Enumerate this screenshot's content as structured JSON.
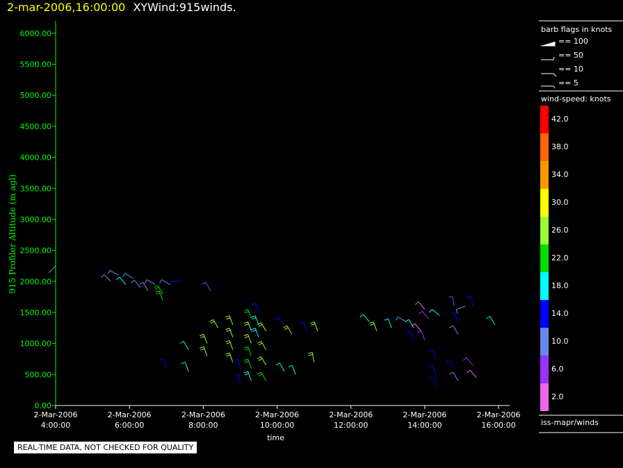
{
  "header": {
    "datetime": "2-mar-2006,16:00:00",
    "title": "XYWind:915winds."
  },
  "notice": "REAL-TIME DATA, NOT CHECKED FOR QUALITY",
  "legend": {
    "barb_title": "barb flags in knots",
    "barb_items": [
      "== 100",
      "== 50",
      "== 10",
      "== 5"
    ],
    "speed_title": "wind-speed: knots",
    "source": "iss-mapr/winds",
    "bins": [
      {
        "label": "42.0",
        "color": "#ff0000"
      },
      {
        "label": "38.0",
        "color": "#ff6600"
      },
      {
        "label": "34.0",
        "color": "#ff9900"
      },
      {
        "label": "30.0",
        "color": "#ffff00"
      },
      {
        "label": "26.0",
        "color": "#99ff33"
      },
      {
        "label": "22.0",
        "color": "#00dd00"
      },
      {
        "label": "18.0",
        "color": "#00ffff"
      },
      {
        "label": "14.0",
        "color": "#0000ff"
      },
      {
        "label": "10.0",
        "color": "#6688ee"
      },
      {
        "label": "6.0",
        "color": "#9933ff"
      },
      {
        "label": "2.0",
        "color": "#ee66ee"
      }
    ]
  },
  "colors": {
    "axis_x": "#ffffff",
    "axis_y": "#00ff00",
    "y_tick_text": "#00ff00"
  },
  "chart_data": {
    "type": "scatter",
    "xlabel": "time",
    "ylabel": "915 Profiler Altitude (m agl)",
    "xlim": [
      4,
      16.3
    ],
    "ylim": [
      0,
      6200
    ],
    "x_ticks": [
      {
        "value": 4,
        "label1": "2-Mar-2006",
        "label2": "4:00:00"
      },
      {
        "value": 6,
        "label1": "2-Mar-2006",
        "label2": "6:00:00"
      },
      {
        "value": 8,
        "label1": "2-Mar-2006",
        "label2": "8:00:00"
      },
      {
        "value": 10,
        "label1": "2-Mar-2006",
        "label2": "10:00:00"
      },
      {
        "value": 12,
        "label1": "2-Mar-2006",
        "label2": "12:00:00"
      },
      {
        "value": 14,
        "label1": "2-Mar-2006",
        "label2": "14:00:00"
      },
      {
        "value": 16,
        "label1": "2-Mar-2006",
        "label2": "16:00:00"
      }
    ],
    "y_ticks": [
      {
        "value": 0,
        "label": "0.00"
      },
      {
        "value": 500,
        "label": "500.00"
      },
      {
        "value": 1000,
        "label": "1000.00"
      },
      {
        "value": 1500,
        "label": "1500.00"
      },
      {
        "value": 2000,
        "label": "2000.00"
      },
      {
        "value": 2500,
        "label": "2500.00"
      },
      {
        "value": 3000,
        "label": "3000.00"
      },
      {
        "value": 3500,
        "label": "3500.00"
      },
      {
        "value": 4000,
        "label": "4000.00"
      },
      {
        "value": 4500,
        "label": "4500.00"
      },
      {
        "value": 5000,
        "label": "5000.00"
      },
      {
        "value": 5500,
        "label": "5500.00"
      },
      {
        "value": 6000,
        "label": "6000.00"
      }
    ],
    "barbs": [
      {
        "t": 4.0,
        "alt": 2250,
        "color": "#6688ee",
        "dir": 225,
        "n": 0
      },
      {
        "t": 5.5,
        "alt": 2000,
        "color": "#6688ee",
        "dir": 315,
        "n": 1
      },
      {
        "t": 5.7,
        "alt": 2100,
        "color": "#6688ee",
        "dir": 300,
        "n": 1
      },
      {
        "t": 5.9,
        "alt": 1950,
        "color": "#00ffff",
        "dir": 320,
        "n": 1
      },
      {
        "t": 6.1,
        "alt": 2050,
        "color": "#6688ee",
        "dir": 300,
        "n": 1
      },
      {
        "t": 6.3,
        "alt": 1900,
        "color": "#6688ee",
        "dir": 320,
        "n": 1
      },
      {
        "t": 6.5,
        "alt": 1850,
        "color": "#6688ee",
        "dir": 330,
        "n": 1
      },
      {
        "t": 6.7,
        "alt": 1950,
        "color": "#6688ee",
        "dir": 300,
        "n": 1
      },
      {
        "t": 6.9,
        "alt": 1800,
        "color": "#00dd00",
        "dir": 330,
        "n": 2
      },
      {
        "t": 7.1,
        "alt": 1950,
        "color": "#6688ee",
        "dir": 300,
        "n": 1
      },
      {
        "t": 7.4,
        "alt": 2000,
        "color": "#0000ff",
        "dir": 270,
        "n": 1
      },
      {
        "t": 8.2,
        "alt": 1850,
        "color": "#9933ff",
        "dir": 330,
        "n": 1
      },
      {
        "t": 6.9,
        "alt": 1700,
        "color": "#00dd00",
        "dir": 340,
        "n": 2
      },
      {
        "t": 8.4,
        "alt": 1250,
        "color": "#99ff33",
        "dir": 330,
        "n": 2
      },
      {
        "t": 8.8,
        "alt": 1300,
        "color": "#99ff33",
        "dir": 340,
        "n": 2
      },
      {
        "t": 8.8,
        "alt": 1100,
        "color": "#99ff33",
        "dir": 340,
        "n": 2
      },
      {
        "t": 8.8,
        "alt": 900,
        "color": "#99ff33",
        "dir": 340,
        "n": 2
      },
      {
        "t": 8.8,
        "alt": 700,
        "color": "#99ff33",
        "dir": 340,
        "n": 2
      },
      {
        "t": 9.3,
        "alt": 1400,
        "color": "#00dd00",
        "dir": 340,
        "n": 2
      },
      {
        "t": 9.3,
        "alt": 1200,
        "color": "#99ff33",
        "dir": 340,
        "n": 2
      },
      {
        "t": 9.3,
        "alt": 1000,
        "color": "#99ff33",
        "dir": 340,
        "n": 2
      },
      {
        "t": 9.3,
        "alt": 800,
        "color": "#00dd00",
        "dir": 340,
        "n": 2
      },
      {
        "t": 9.3,
        "alt": 600,
        "color": "#00dd00",
        "dir": 340,
        "n": 2
      },
      {
        "t": 9.3,
        "alt": 400,
        "color": "#00ffff",
        "dir": 340,
        "n": 2
      },
      {
        "t": 9.5,
        "alt": 1500,
        "color": "#0000ff",
        "dir": 340,
        "n": 1
      },
      {
        "t": 9.5,
        "alt": 1300,
        "color": "#00ffff",
        "dir": 340,
        "n": 2
      },
      {
        "t": 9.5,
        "alt": 1100,
        "color": "#00ffff",
        "dir": 340,
        "n": 2
      },
      {
        "t": 9.7,
        "alt": 1200,
        "color": "#99ff33",
        "dir": 330,
        "n": 2
      },
      {
        "t": 9.7,
        "alt": 900,
        "color": "#99ff33",
        "dir": 330,
        "n": 2
      },
      {
        "t": 9.7,
        "alt": 650,
        "color": "#99ff33",
        "dir": 330,
        "n": 2
      },
      {
        "t": 9.7,
        "alt": 400,
        "color": "#00dd00",
        "dir": 330,
        "n": 2
      },
      {
        "t": 9.0,
        "alt": 600,
        "color": "#0000ff",
        "dir": 350,
        "n": 1
      },
      {
        "t": 9.0,
        "alt": 350,
        "color": "#0000ff",
        "dir": 350,
        "n": 1
      },
      {
        "t": 10.2,
        "alt": 1300,
        "color": "#0000ff",
        "dir": 320,
        "n": 1
      },
      {
        "t": 10.4,
        "alt": 1150,
        "color": "#99ff33",
        "dir": 330,
        "n": 2
      },
      {
        "t": 10.8,
        "alt": 1200,
        "color": "#0000ff",
        "dir": 340,
        "n": 1
      },
      {
        "t": 11.1,
        "alt": 1200,
        "color": "#99ff33",
        "dir": 340,
        "n": 2
      },
      {
        "t": 10.2,
        "alt": 550,
        "color": "#00ffff",
        "dir": 330,
        "n": 1
      },
      {
        "t": 10.5,
        "alt": 500,
        "color": "#00ffff",
        "dir": 340,
        "n": 1
      },
      {
        "t": 11.0,
        "alt": 700,
        "color": "#99ff33",
        "dir": 350,
        "n": 2
      },
      {
        "t": 7.0,
        "alt": 600,
        "color": "#0000ff",
        "dir": 340,
        "n": 1
      },
      {
        "t": 7.6,
        "alt": 900,
        "color": "#00ffff",
        "dir": 330,
        "n": 1
      },
      {
        "t": 7.6,
        "alt": 550,
        "color": "#00ffff",
        "dir": 340,
        "n": 1
      },
      {
        "t": 8.1,
        "alt": 1000,
        "color": "#99ff33",
        "dir": 340,
        "n": 2
      },
      {
        "t": 8.1,
        "alt": 800,
        "color": "#99ff33",
        "dir": 340,
        "n": 2
      },
      {
        "t": 12.5,
        "alt": 1350,
        "color": "#00ffff",
        "dir": 320,
        "n": 1
      },
      {
        "t": 12.7,
        "alt": 1200,
        "color": "#99ff33",
        "dir": 340,
        "n": 2
      },
      {
        "t": 13.1,
        "alt": 1250,
        "color": "#00ffff",
        "dir": 340,
        "n": 1
      },
      {
        "t": 13.5,
        "alt": 1350,
        "color": "#6688ee",
        "dir": 300,
        "n": 1
      },
      {
        "t": 13.7,
        "alt": 1250,
        "color": "#00ffff",
        "dir": 330,
        "n": 1
      },
      {
        "t": 13.7,
        "alt": 1050,
        "color": "#0000ff",
        "dir": 340,
        "n": 1
      },
      {
        "t": 14.0,
        "alt": 1550,
        "color": "#ee66ee",
        "dir": 320,
        "n": 1
      },
      {
        "t": 14.1,
        "alt": 1400,
        "color": "#9933ff",
        "dir": 320,
        "n": 1
      },
      {
        "t": 13.9,
        "alt": 1200,
        "color": "#ee66ee",
        "dir": 320,
        "n": 1
      },
      {
        "t": 14.0,
        "alt": 1050,
        "color": "#9933ff",
        "dir": 340,
        "n": 1
      },
      {
        "t": 14.4,
        "alt": 1450,
        "color": "#00ffff",
        "dir": 310,
        "n": 1
      },
      {
        "t": 14.8,
        "alt": 1600,
        "color": "#9933ff",
        "dir": 350,
        "n": 1
      },
      {
        "t": 14.9,
        "alt": 1350,
        "color": "#0000ff",
        "dir": 340,
        "n": 1
      },
      {
        "t": 14.9,
        "alt": 1150,
        "color": "#6688ee",
        "dir": 330,
        "n": 1
      },
      {
        "t": 15.1,
        "alt": 1600,
        "color": "#6688ee",
        "dir": 250,
        "n": 1
      },
      {
        "t": 15.3,
        "alt": 1600,
        "color": "#0000ff",
        "dir": 350,
        "n": 1
      },
      {
        "t": 15.9,
        "alt": 1300,
        "color": "#00ffff",
        "dir": 330,
        "n": 1
      },
      {
        "t": 14.3,
        "alt": 750,
        "color": "#0000ff",
        "dir": 340,
        "n": 1
      },
      {
        "t": 14.3,
        "alt": 500,
        "color": "#0000ff",
        "dir": 340,
        "n": 1
      },
      {
        "t": 14.3,
        "alt": 300,
        "color": "#0000ff",
        "dir": 350,
        "n": 1
      },
      {
        "t": 14.8,
        "alt": 600,
        "color": "#0000ff",
        "dir": 330,
        "n": 1
      },
      {
        "t": 14.9,
        "alt": 400,
        "color": "#6688ee",
        "dir": 330,
        "n": 1
      },
      {
        "t": 15.3,
        "alt": 650,
        "color": "#9933ff",
        "dir": 320,
        "n": 1
      },
      {
        "t": 15.4,
        "alt": 450,
        "color": "#ee66ee",
        "dir": 320,
        "n": 1
      }
    ]
  }
}
